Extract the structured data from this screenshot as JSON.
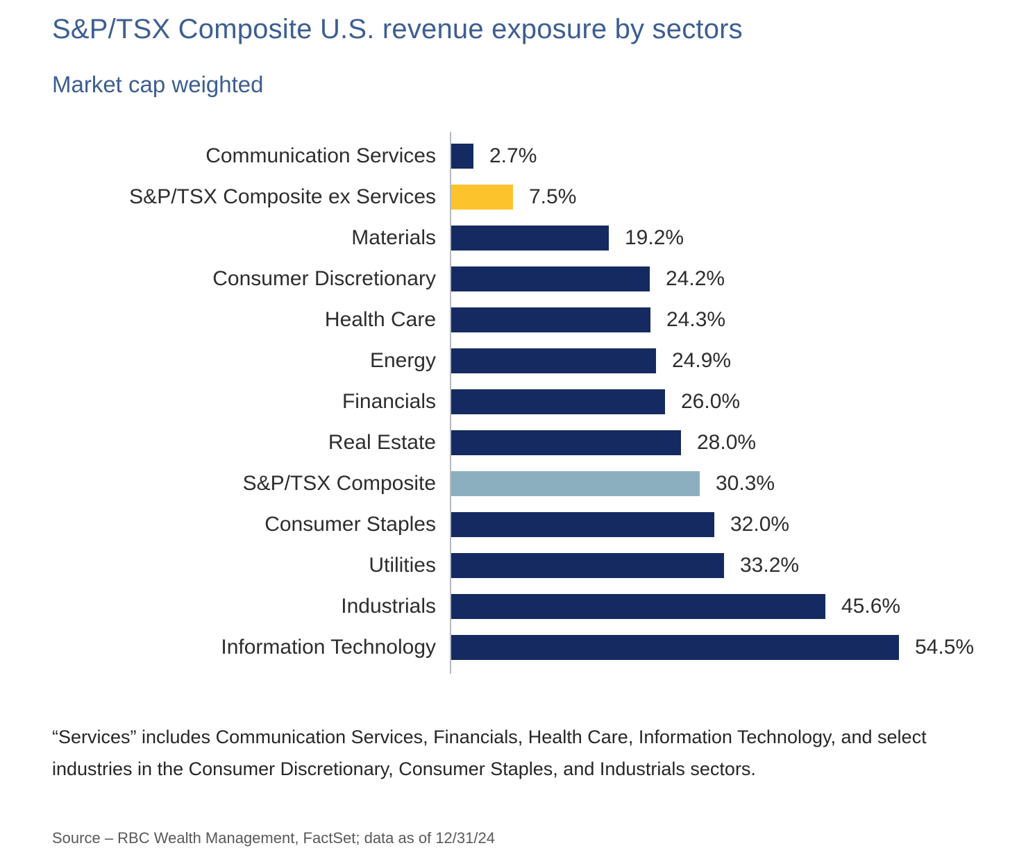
{
  "header": {
    "title": "S&P/TSX Composite U.S. revenue exposure by sectors",
    "subtitle": "Market cap weighted"
  },
  "chart_data": {
    "type": "bar",
    "orientation": "horizontal",
    "title": "S&P/TSX Composite U.S. revenue exposure by sectors",
    "subtitle": "Market cap weighted",
    "value_unit": "%",
    "xlim": [
      0,
      60
    ],
    "grid": "off",
    "legend": "none",
    "axis_note": "single vertical baseline at 0; no x-axis tick labels; value labels shown at end of each bar",
    "categories": [
      "Communication Services",
      "S&P/TSX Composite ex Services",
      "Materials",
      "Consumer Discretionary",
      "Health Care",
      "Energy",
      "Financials",
      "Real Estate",
      "S&P/TSX Composite",
      "Consumer Staples",
      "Utilities",
      "Industrials",
      "Information Technology"
    ],
    "values": [
      2.7,
      7.5,
      19.2,
      24.2,
      24.3,
      24.9,
      26.0,
      28.0,
      30.3,
      32.0,
      33.2,
      45.6,
      54.5
    ],
    "bars": [
      {
        "label": "Communication Services",
        "value": 2.7,
        "display": "2.7%",
        "color": "navy"
      },
      {
        "label": "S&P/TSX Composite ex Services",
        "value": 7.5,
        "display": "7.5%",
        "color": "gold"
      },
      {
        "label": "Materials",
        "value": 19.2,
        "display": "19.2%",
        "color": "navy"
      },
      {
        "label": "Consumer Discretionary",
        "value": 24.2,
        "display": "24.2%",
        "color": "navy"
      },
      {
        "label": "Health Care",
        "value": 24.3,
        "display": "24.3%",
        "color": "navy"
      },
      {
        "label": "Energy",
        "value": 24.9,
        "display": "24.9%",
        "color": "navy"
      },
      {
        "label": "Financials",
        "value": 26.0,
        "display": "26.0%",
        "color": "navy"
      },
      {
        "label": "Real Estate",
        "value": 28.0,
        "display": "28.0%",
        "color": "navy"
      },
      {
        "label": "S&P/TSX Composite",
        "value": 30.3,
        "display": "30.3%",
        "color": "lightblue"
      },
      {
        "label": "Consumer Staples",
        "value": 32.0,
        "display": "32.0%",
        "color": "navy"
      },
      {
        "label": "Utilities",
        "value": 33.2,
        "display": "33.2%",
        "color": "navy"
      },
      {
        "label": "Industrials",
        "value": 45.6,
        "display": "45.6%",
        "color": "navy"
      },
      {
        "label": "Information Technology",
        "value": 54.5,
        "display": "54.5%",
        "color": "navy"
      }
    ]
  },
  "palette": {
    "navy": "#152a61",
    "gold": "#fcc32d",
    "lightblue": "#8bafbe",
    "title_blue": "#3c5e91",
    "axis_gray": "#b4b9be",
    "source_gray": "#595959"
  },
  "footnote": "“Services” includes Communication Services, Financials, Health Care, Information Technology, and select industries in the Consumer Discretionary, Consumer Staples, and Industrials sectors.",
  "source": "Source – RBC Wealth Management, FactSet; data as of 12/31/24"
}
